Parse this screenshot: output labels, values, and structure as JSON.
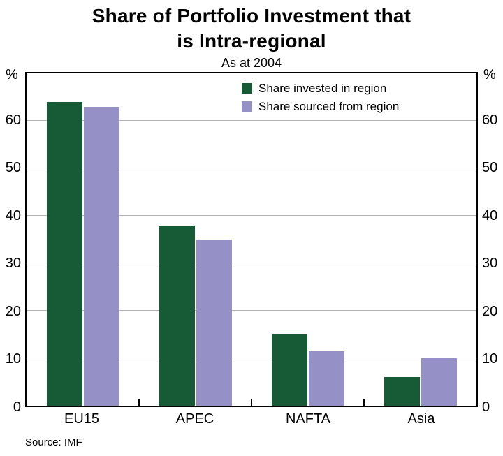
{
  "title_line1": "Share of Portfolio Investment that",
  "title_line2": "is Intra-regional",
  "subtitle": "As at 2004",
  "source": "Source: IMF",
  "y_axis": {
    "unit": "%"
  },
  "chart_data": {
    "type": "bar",
    "title": "Share of Portfolio Investment that is Intra-regional",
    "subtitle": "As at 2004",
    "categories": [
      "EU15",
      "APEC",
      "NAFTA",
      "Asia"
    ],
    "series": [
      {
        "name": "Share invested in region",
        "color": "#165b36",
        "values": [
          64,
          38,
          15,
          6
        ]
      },
      {
        "name": "Share sourced from region",
        "color": "#9590c5",
        "values": [
          63,
          35,
          11.5,
          10
        ]
      }
    ],
    "ylabel": "%",
    "ylim": [
      0,
      70
    ],
    "yticks": [
      0,
      10,
      20,
      30,
      40,
      50,
      60
    ],
    "grid": true,
    "gridline_color": "#b4b4b4",
    "legend_position": "top-center-inside",
    "source": "Source: IMF"
  }
}
